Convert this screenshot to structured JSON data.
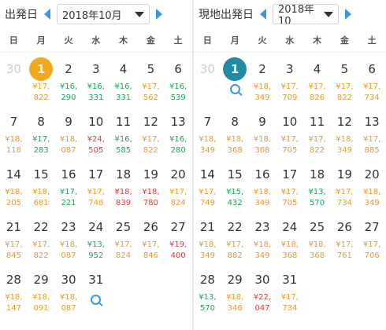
{
  "left": {
    "label": "出発日",
    "month": "2018年10月",
    "today_color": "#f0a81e",
    "weekdays": [
      "日",
      "月",
      "火",
      "水",
      "木",
      "金",
      "土"
    ],
    "days": [
      {
        "d": "30",
        "muted": true
      },
      {
        "d": "1",
        "today": true,
        "p": "¥17,\n822",
        "c": "orange"
      },
      {
        "d": "2",
        "p": "¥16,\n290",
        "c": "green"
      },
      {
        "d": "3",
        "p": "¥16,\n331",
        "c": "green"
      },
      {
        "d": "4",
        "p": "¥16,\n331",
        "c": "green"
      },
      {
        "d": "5",
        "p": "¥17,\n562",
        "c": "orange"
      },
      {
        "d": "6",
        "p": "¥16,\n539",
        "c": "green"
      },
      {
        "d": "7",
        "p": "¥18,\n118",
        "c": "orange"
      },
      {
        "d": "8",
        "p": "¥17,\n283",
        "c": "green"
      },
      {
        "d": "9",
        "p": "¥18,\n087",
        "c": "orange"
      },
      {
        "d": "10",
        "p": "¥24,\n505",
        "c": "red"
      },
      {
        "d": "11",
        "p": "¥16,\n585",
        "c": "green"
      },
      {
        "d": "12",
        "p": "¥17,\n822",
        "c": "orange"
      },
      {
        "d": "13",
        "p": "¥16,\n280",
        "c": "green"
      },
      {
        "d": "14",
        "p": "¥18,\n205",
        "c": "orange"
      },
      {
        "d": "15",
        "p": "¥18,\n681",
        "c": "orange"
      },
      {
        "d": "16",
        "p": "¥17,\n221",
        "c": "green"
      },
      {
        "d": "17",
        "p": "¥17,\n748",
        "c": "orange"
      },
      {
        "d": "18",
        "p": "¥18,\n839",
        "c": "red"
      },
      {
        "d": "19",
        "p": "¥18,\n780",
        "c": "red"
      },
      {
        "d": "20",
        "p": "¥17,\n824",
        "c": "orange"
      },
      {
        "d": "21",
        "p": "¥17,\n845",
        "c": "orange"
      },
      {
        "d": "22",
        "p": "¥17,\n822",
        "c": "orange"
      },
      {
        "d": "23",
        "p": "¥18,\n087",
        "c": "orange"
      },
      {
        "d": "24",
        "p": "¥13,\n952",
        "c": "green"
      },
      {
        "d": "25",
        "p": "¥17,\n824",
        "c": "orange"
      },
      {
        "d": "26",
        "p": "¥17,\n846",
        "c": "orange"
      },
      {
        "d": "27",
        "p": "¥19,\n400",
        "c": "red"
      },
      {
        "d": "28",
        "p": "¥18,\n147",
        "c": "orange"
      },
      {
        "d": "29",
        "p": "¥18,\n091",
        "c": "orange"
      },
      {
        "d": "30",
        "p": "¥18,\n087",
        "c": "orange"
      },
      {
        "d": "31",
        "search": true
      }
    ]
  },
  "right": {
    "label": "現地出発日",
    "month": "2018年10",
    "today_color": "#1f8ca4",
    "weekdays": [
      "日",
      "月",
      "火",
      "水",
      "木",
      "金",
      "土"
    ],
    "days": [
      {
        "d": "30",
        "muted": true
      },
      {
        "d": "1",
        "today": true,
        "search": true
      },
      {
        "d": "2",
        "p": "¥18,\n349",
        "c": "orange"
      },
      {
        "d": "3",
        "p": "¥17,\n709",
        "c": "orange"
      },
      {
        "d": "4",
        "p": "¥17,\n826",
        "c": "orange"
      },
      {
        "d": "5",
        "p": "¥17,\n822",
        "c": "orange"
      },
      {
        "d": "6",
        "p": "¥17,\n734",
        "c": "orange"
      },
      {
        "d": "7",
        "p": "¥18,\n349",
        "c": "orange"
      },
      {
        "d": "8",
        "p": "¥18,\n368",
        "c": "orange"
      },
      {
        "d": "9",
        "p": "¥18,\n368",
        "c": "orange"
      },
      {
        "d": "10",
        "p": "¥17,\n705",
        "c": "orange"
      },
      {
        "d": "11",
        "p": "¥17,\n822",
        "c": "orange"
      },
      {
        "d": "12",
        "p": "¥18,\n349",
        "c": "orange"
      },
      {
        "d": "13",
        "p": "¥17,\n885",
        "c": "orange"
      },
      {
        "d": "14",
        "p": "¥17,\n749",
        "c": "orange"
      },
      {
        "d": "15",
        "p": "¥15,\n432",
        "c": "green"
      },
      {
        "d": "16",
        "p": "¥18,\n349",
        "c": "orange"
      },
      {
        "d": "17",
        "p": "¥17,\n705",
        "c": "orange"
      },
      {
        "d": "18",
        "p": "¥13,\n570",
        "c": "green"
      },
      {
        "d": "19",
        "p": "¥17,\n734",
        "c": "orange"
      },
      {
        "d": "20",
        "p": "¥18,\n349",
        "c": "orange"
      },
      {
        "d": "21",
        "p": "¥18,\n349",
        "c": "orange"
      },
      {
        "d": "22",
        "p": "¥17,\n882",
        "c": "orange"
      },
      {
        "d": "23",
        "p": "¥18,\n349",
        "c": "orange"
      },
      {
        "d": "24",
        "p": "¥18,\n368",
        "c": "orange"
      },
      {
        "d": "25",
        "p": "¥18,\n368",
        "c": "orange"
      },
      {
        "d": "26",
        "p": "¥17,\n761",
        "c": "orange"
      },
      {
        "d": "27",
        "p": "¥17,\n706",
        "c": "orange"
      },
      {
        "d": "28",
        "p": "¥13,\n570",
        "c": "green"
      },
      {
        "d": "29",
        "p": "¥18,\n346",
        "c": "orange"
      },
      {
        "d": "30",
        "p": "¥22,\n047",
        "c": "red"
      },
      {
        "d": "31",
        "p": "¥17,\n734",
        "c": "orange"
      }
    ]
  }
}
